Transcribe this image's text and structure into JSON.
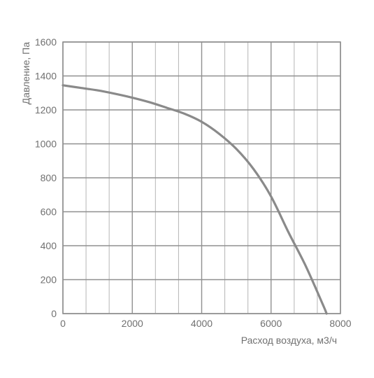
{
  "chart_data": {
    "type": "line",
    "title": "",
    "xlabel": "Расход воздуха, м3/ч",
    "ylabel": "Давление, Па",
    "xlim": [
      0,
      8000
    ],
    "ylim": [
      0,
      1600
    ],
    "x_ticks": [
      "0",
      "2000",
      "4000",
      "6000",
      "8000"
    ],
    "y_ticks": [
      "0",
      "200",
      "400",
      "600",
      "800",
      "1000",
      "1200",
      "1400",
      "1600"
    ],
    "grid": true,
    "legend": "none",
    "colors": {
      "line": "#8a8a8a",
      "major_grid": "#909090",
      "minor_grid": "#b5b5b5",
      "frame": "#909090",
      "text": "#707070"
    },
    "series": [
      {
        "x": [
          0,
          500,
          1000,
          1500,
          2000,
          2500,
          3000,
          3500,
          4000,
          4500,
          5000,
          5500,
          6000,
          6500,
          7000,
          7500,
          7600
        ],
        "y": [
          1345,
          1330,
          1315,
          1295,
          1272,
          1245,
          1212,
          1178,
          1130,
          1060,
          970,
          850,
          690,
          480,
          280,
          50,
          0
        ]
      }
    ]
  }
}
